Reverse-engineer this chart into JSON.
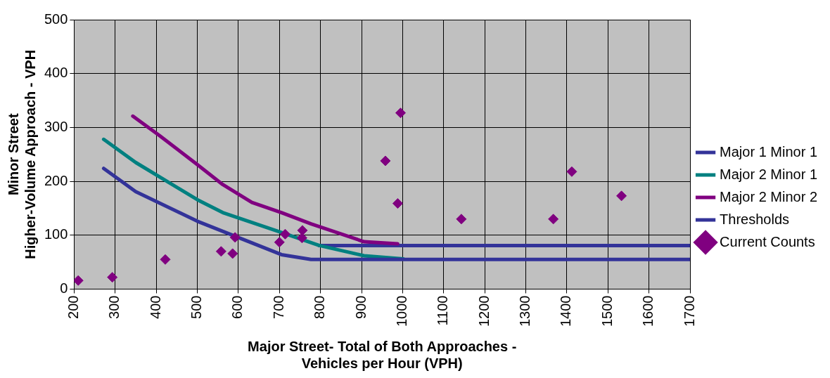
{
  "chart_data": {
    "type": "line",
    "xlabel": "Major Street- Total of Both Approaches -\nVehicles per Hour (VPH)",
    "ylabel": "Minor Street\nHigher-Volume Approach - VPH",
    "xlim": [
      200,
      1700
    ],
    "xticks": [
      200,
      300,
      400,
      500,
      600,
      700,
      800,
      900,
      1000,
      1100,
      1200,
      1300,
      1400,
      1500,
      1600,
      1700
    ],
    "ylim": [
      0,
      500
    ],
    "yticks": [
      0,
      100,
      200,
      300,
      400,
      500
    ],
    "grid": true,
    "legend": "right",
    "line_style": "solid",
    "marker": "none",
    "series": [
      {
        "name": "Major 1 Minor 1",
        "color": "#333399",
        "x": [
          272,
          350,
          500,
          705,
          777,
          1700
        ],
        "values": [
          224,
          181,
          126,
          64,
          55,
          55
        ]
      },
      {
        "name": "Major 2 Minor 1",
        "color": "#008080",
        "x": [
          272,
          350,
          500,
          562,
          705,
          797,
          906,
          1002
        ],
        "values": [
          278,
          235,
          166,
          142,
          105,
          81,
          62,
          56
        ]
      },
      {
        "name": "Major 2 Minor 2",
        "color": "#800080",
        "x": [
          343,
          408,
          500,
          562,
          633,
          705,
          777,
          906,
          988
        ],
        "values": [
          321,
          285,
          231,
          194,
          161,
          142,
          121,
          88,
          84
        ]
      },
      {
        "name": "Thresholds",
        "color": "#333399",
        "x": [
          797,
          1700
        ],
        "values": [
          81,
          81
        ]
      },
      {
        "name": "Current Counts",
        "type": "scatter",
        "marker": "diamond",
        "color": "#800080",
        "x": [
          210,
          293,
          422,
          558,
          586,
          592,
          700,
          714,
          755,
          756,
          958,
          995,
          988,
          1143,
          1367,
          1412,
          1533
        ],
        "values": [
          16,
          22,
          55,
          70,
          66,
          96,
          87,
          102,
          95,
          109,
          238,
          327,
          159,
          130,
          130,
          218,
          173
        ]
      }
    ]
  }
}
